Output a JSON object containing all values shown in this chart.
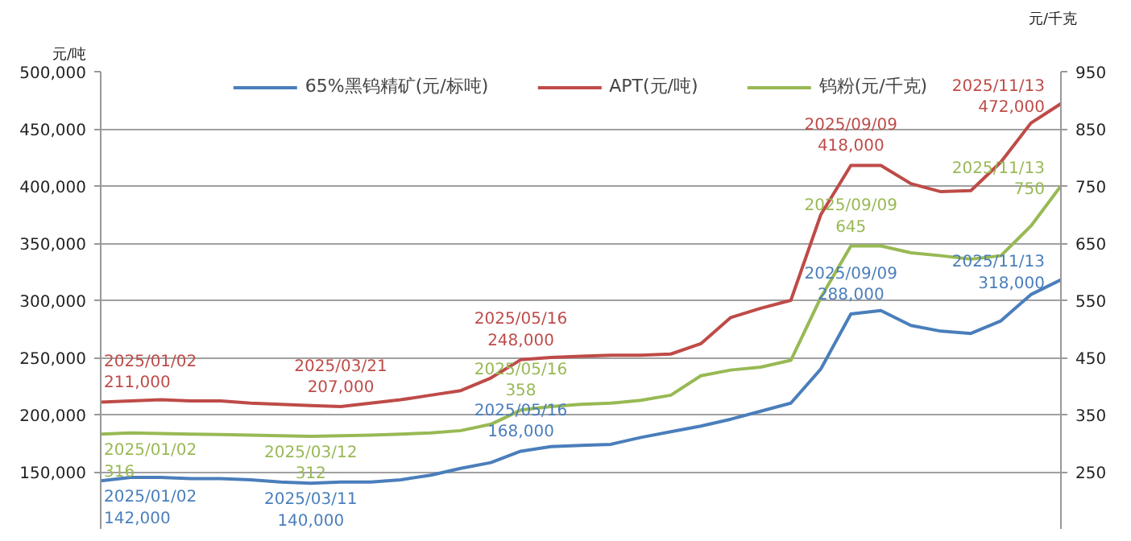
{
  "chart_data": {
    "type": "line",
    "ylabel": "元/吨",
    "y2label": "元/千克",
    "categories": [
      null,
      null,
      null,
      null,
      null,
      null,
      null,
      null,
      null,
      null,
      null,
      null,
      null,
      null,
      null,
      null,
      null,
      null,
      null,
      null,
      null,
      null,
      null,
      null,
      null,
      null,
      null,
      null,
      null,
      null,
      null,
      null,
      null
    ],
    "series": [
      {
        "name": "65%黑钨精矿(元/标吨)",
        "color": "#4a7ebb",
        "values": [
          142000,
          145000,
          145000,
          144000,
          144000,
          143000,
          141000,
          140000,
          141000,
          141000,
          143000,
          147000,
          153000,
          158000,
          168000,
          172000,
          173000,
          174000,
          180000,
          185000,
          190000,
          196000,
          203000,
          210000,
          240000,
          288000,
          291000,
          278000,
          273000,
          271000,
          282000,
          305000,
          318000
        ],
        "value_labels": [
          "2025/01/02\n142,000",
          null,
          null,
          null,
          null,
          null,
          null,
          "2025/03/11\n140,000",
          null,
          null,
          null,
          null,
          null,
          null,
          "2025/05/16\n168,000",
          null,
          null,
          null,
          null,
          null,
          null,
          null,
          null,
          null,
          null,
          "2025/09/09\n288,000",
          null,
          null,
          null,
          null,
          null,
          null,
          "2025/11/13\n318,000"
        ]
      },
      {
        "name": "APT(元/吨)",
        "color": "#be4b48",
        "values": [
          211000,
          212000,
          213000,
          212000,
          212000,
          210000,
          209000,
          208000,
          207000,
          210000,
          213000,
          217000,
          221000,
          232000,
          248000,
          250000,
          251000,
          252000,
          252000,
          253000,
          262000,
          285000,
          293000,
          300000,
          375000,
          418000,
          418000,
          402000,
          395000,
          396000,
          421000,
          455000,
          472000
        ],
        "value_labels": [
          "2025/01/02\n211,000",
          null,
          null,
          null,
          null,
          null,
          null,
          null,
          "2025/03/21\n207,000",
          null,
          null,
          null,
          null,
          null,
          "2025/05/16\n248,000",
          null,
          null,
          null,
          null,
          null,
          null,
          null,
          null,
          null,
          null,
          "2025/09/09\n418,000",
          null,
          null,
          null,
          null,
          null,
          null,
          "2025/11/13\n472,000"
        ]
      },
      {
        "name": "钨粉(元/千克)",
        "color": "#98b954",
        "axis": "y2",
        "values": [
          316,
          318,
          317,
          316,
          315,
          314,
          313,
          312,
          313,
          314,
          316,
          318,
          322,
          333,
          358,
          364,
          368,
          370,
          375,
          384,
          418,
          428,
          433,
          445,
          555,
          645,
          645,
          633,
          628,
          622,
          628,
          680,
          750
        ],
        "value_labels": [
          "2025/01/02\n316",
          null,
          null,
          null,
          null,
          null,
          null,
          "2025/03/12\n312",
          null,
          null,
          null,
          null,
          null,
          null,
          "2025/05/16\n358",
          null,
          null,
          null,
          null,
          null,
          null,
          null,
          null,
          null,
          null,
          "2025/09/09\n645",
          null,
          null,
          null,
          null,
          null,
          null,
          "2025/11/13\n750"
        ]
      }
    ],
    "ylim": [
      100000,
      500000
    ],
    "yticks": [
      {
        "value": 150000,
        "label": "150,000"
      },
      {
        "value": 200000,
        "label": "200,000"
      },
      {
        "value": 250000,
        "label": "250,000"
      },
      {
        "value": 300000,
        "label": "300,000"
      },
      {
        "value": 350000,
        "label": "350,000"
      },
      {
        "value": 400000,
        "label": "400,000"
      },
      {
        "value": 450000,
        "label": "450,000"
      },
      {
        "value": 500000,
        "label": "500,000"
      }
    ],
    "y2lim": [
      150,
      950
    ],
    "y2ticks": [
      250,
      350,
      450,
      550,
      650,
      750,
      850,
      950
    ],
    "tick_labels": "y",
    "grid": "y",
    "legend": "top",
    "line_style": "solid",
    "marker": "none"
  }
}
